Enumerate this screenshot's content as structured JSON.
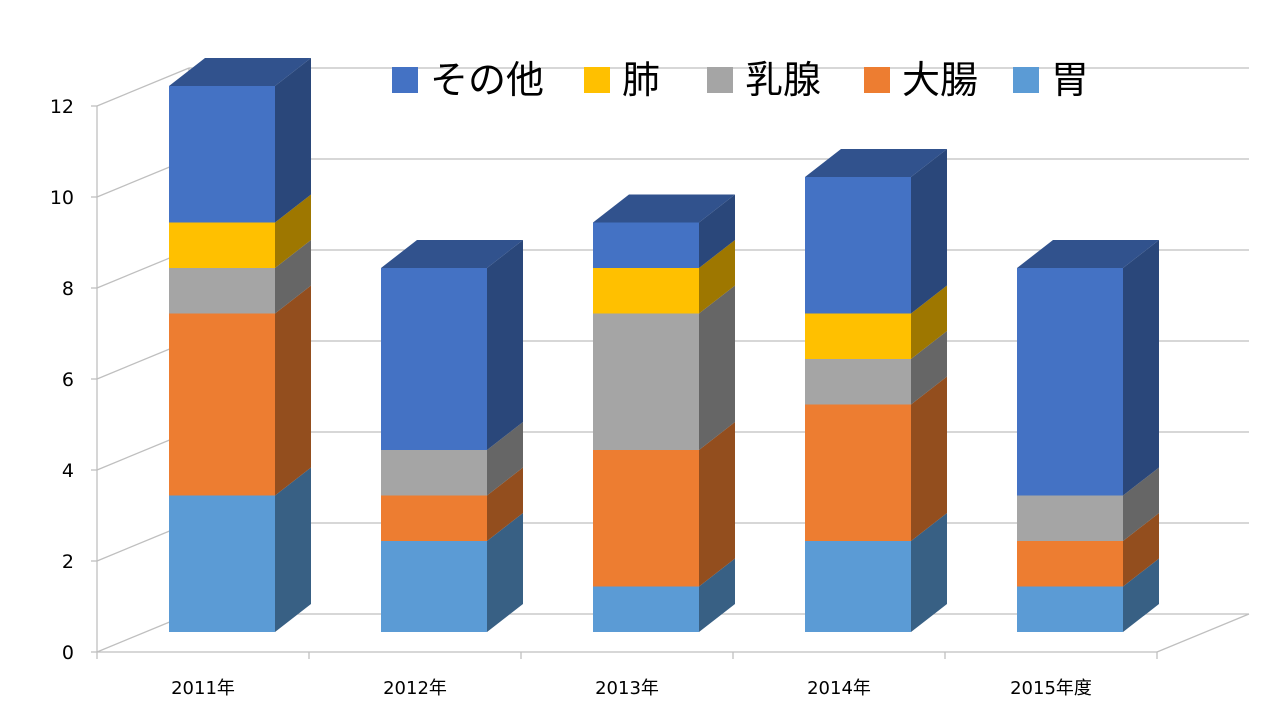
{
  "chart_data": {
    "type": "bar",
    "stacked": true,
    "three_d": true,
    "categories": [
      "2011年",
      "2012年",
      "2013年",
      "2014年",
      "2015年度"
    ],
    "series": [
      {
        "name": "胃",
        "color": "#5B9BD5",
        "values": [
          3,
          2,
          1,
          2,
          1
        ]
      },
      {
        "name": "大腸",
        "color": "#ED7D31",
        "values": [
          4,
          1,
          3,
          3,
          1
        ]
      },
      {
        "name": "乳腺",
        "color": "#A5A5A5",
        "values": [
          1,
          1,
          3,
          1,
          1
        ]
      },
      {
        "name": "肺",
        "color": "#FFC000",
        "values": [
          1,
          0,
          1,
          1,
          0
        ]
      },
      {
        "name": "その他",
        "color": "#4472C4",
        "values": [
          3,
          4,
          1,
          3,
          5
        ]
      }
    ],
    "legend_order": [
      "その他",
      "肺",
      "乳腺",
      "大腸",
      "胃"
    ],
    "legend_position": "top",
    "ylim": [
      0,
      12
    ],
    "yticks": [
      "0",
      "2",
      "4",
      "6",
      "8",
      "10",
      "12"
    ],
    "grid": true,
    "title": "",
    "xlabel": "",
    "ylabel": ""
  }
}
